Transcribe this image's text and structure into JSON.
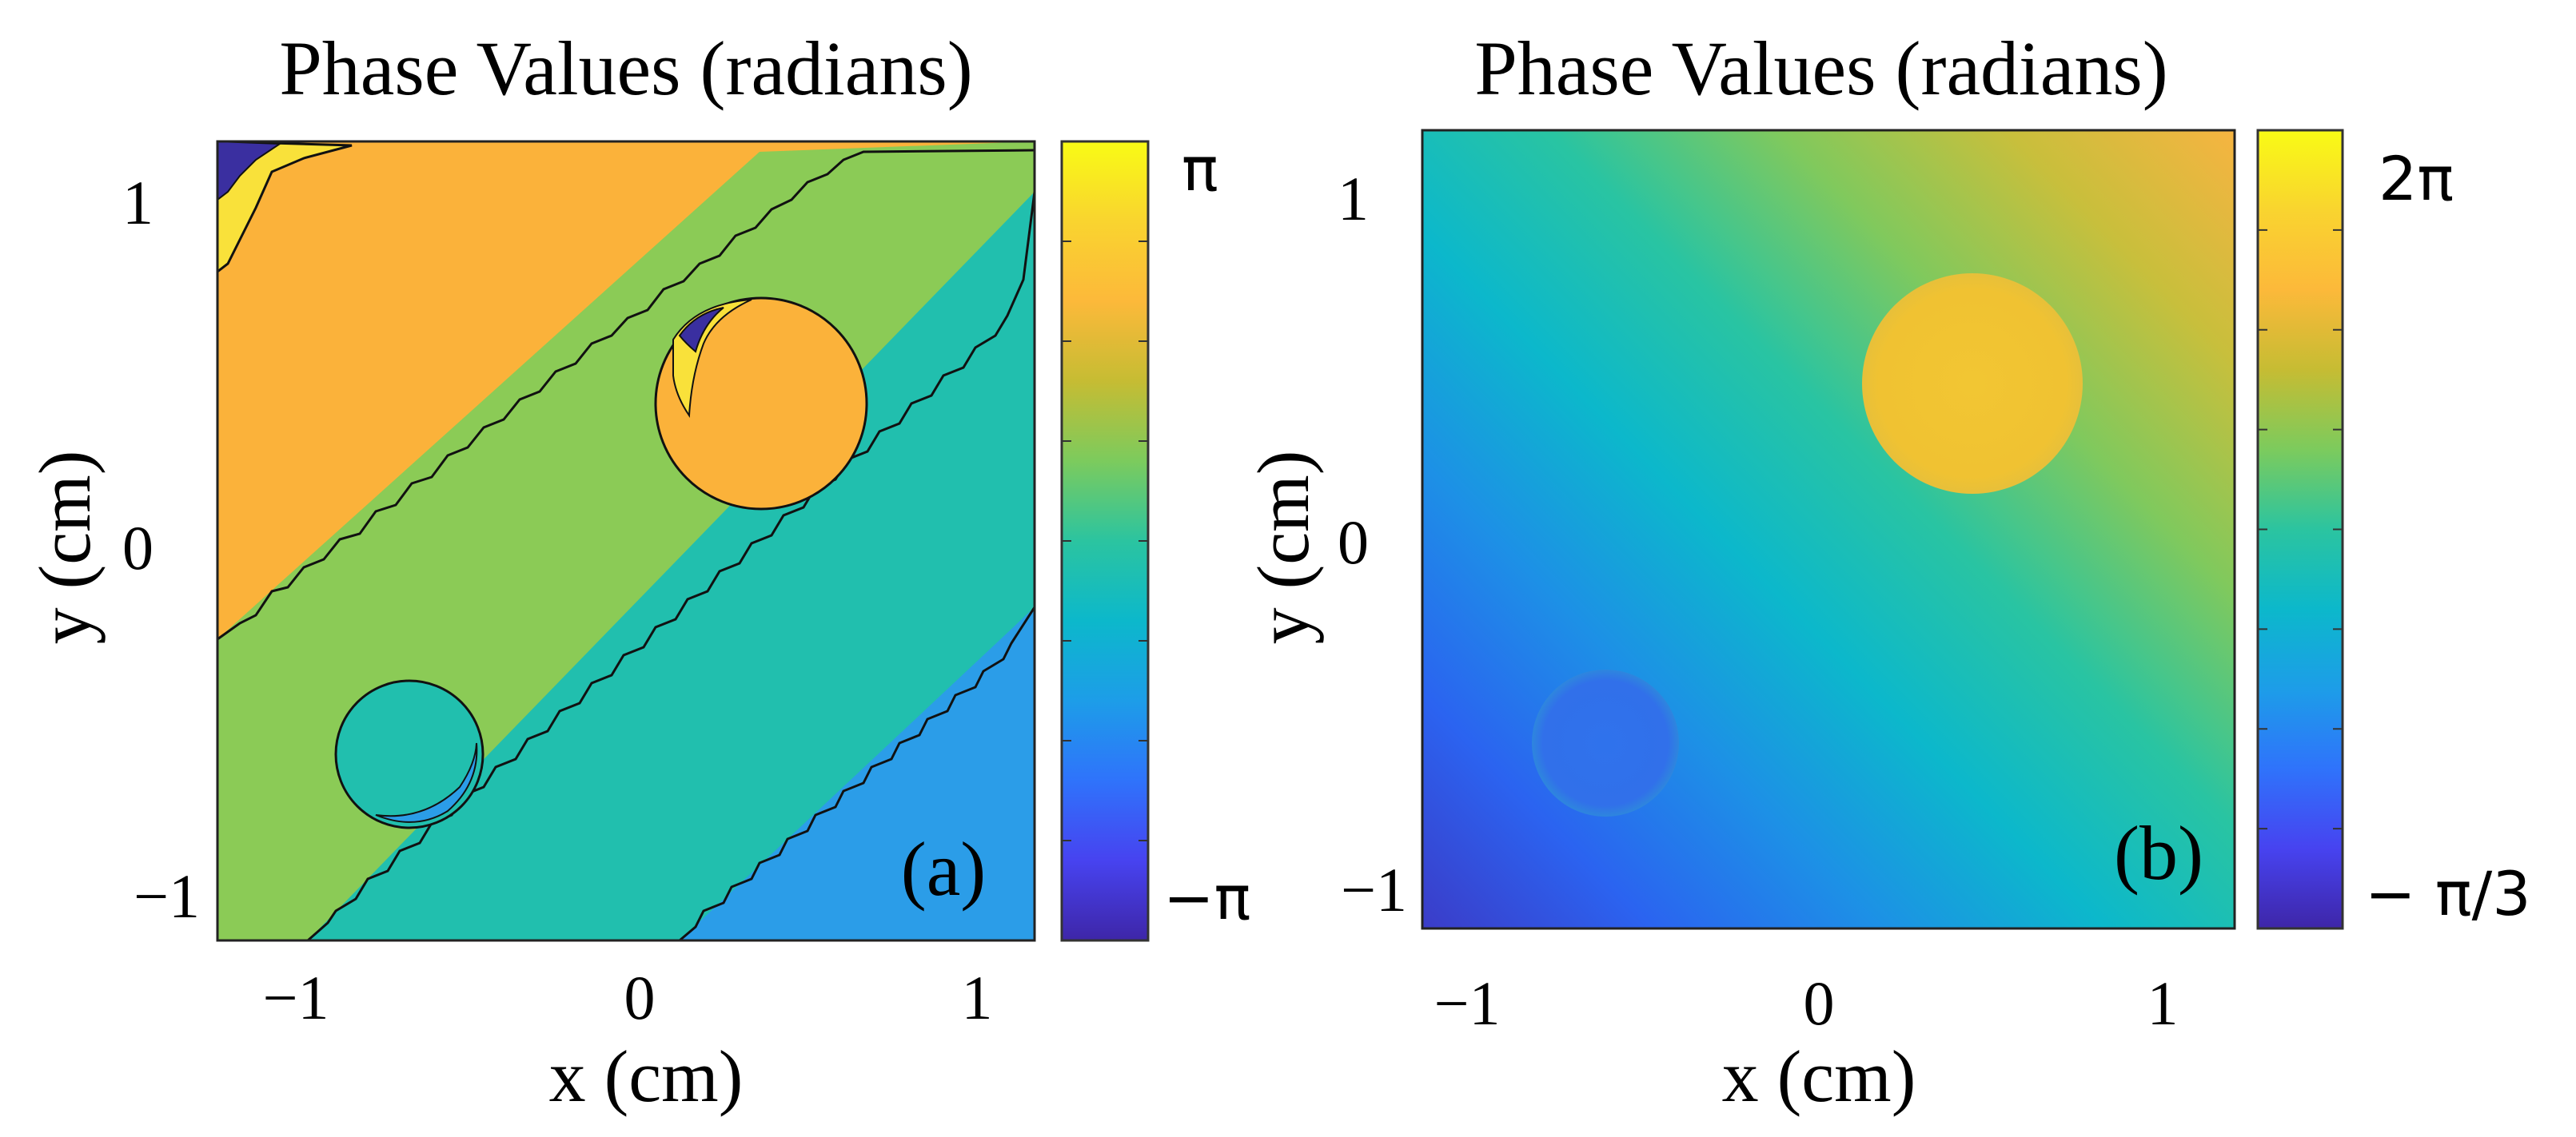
{
  "chart_data": [
    {
      "type": "heatmap",
      "subtype": "filled-contour",
      "title": "Phase Values (radians)",
      "xlabel": "x (cm)",
      "ylabel": "y (cm)",
      "xlim": [
        -1.2,
        1.2
      ],
      "ylim": [
        -1.15,
        1.15
      ],
      "xticks": [
        -1,
        0,
        1
      ],
      "xtick_labels": [
        "−1",
        "0",
        "1"
      ],
      "yticks": [
        1,
        0,
        -1
      ],
      "ytick_labels": [
        "1",
        "0",
        "−1"
      ],
      "colorbar": {
        "min_label": "−π",
        "max_label": "π",
        "colormap": "parula"
      },
      "panel_label": "(a)",
      "bands": [
        {
          "name": "yellow",
          "color": "#f9e13a"
        },
        {
          "name": "orange",
          "color": "#fbb23a"
        },
        {
          "name": "green",
          "color": "#8bcb56"
        },
        {
          "name": "teal",
          "color": "#21bfae"
        },
        {
          "name": "blue",
          "color": "#2b9de8"
        },
        {
          "name": "dark-purple",
          "color": "#3a2fa0"
        }
      ],
      "circles": [
        {
          "name": "large",
          "cx": 0.37,
          "cy": 0.42,
          "r": 0.3
        },
        {
          "name": "small",
          "cx": -0.68,
          "cy": -0.63,
          "r": 0.21
        }
      ]
    },
    {
      "type": "heatmap",
      "subtype": "continuous",
      "title": "Phase Values (radians)",
      "xlabel": "x (cm)",
      "ylabel": "y (cm)",
      "xlim": [
        -1.2,
        1.2
      ],
      "ylim": [
        -1.15,
        1.15
      ],
      "xticks": [
        -1,
        0,
        1
      ],
      "xtick_labels": [
        "−1",
        "0",
        "1"
      ],
      "yticks": [
        1,
        0,
        -1
      ],
      "ytick_labels": [
        "1",
        "0",
        "−1"
      ],
      "colorbar": {
        "min_label": "− π/3",
        "max_label": "2π",
        "colormap": "parula"
      },
      "panel_label": "(b)",
      "circles": [
        {
          "name": "large",
          "cx": 0.45,
          "cy": 0.42,
          "r": 0.32
        },
        {
          "name": "small",
          "cx": -0.62,
          "cy": -0.62,
          "r": 0.21
        }
      ]
    }
  ],
  "colors": {
    "parula_stops": [
      "#3e26a8",
      "#4743f0",
      "#2f73fb",
      "#1d9de8",
      "#0cb8cb",
      "#2bc4a0",
      "#7ccb5d",
      "#c6bc33",
      "#fcb93a",
      "#f9d42f",
      "#f9fb15"
    ]
  }
}
